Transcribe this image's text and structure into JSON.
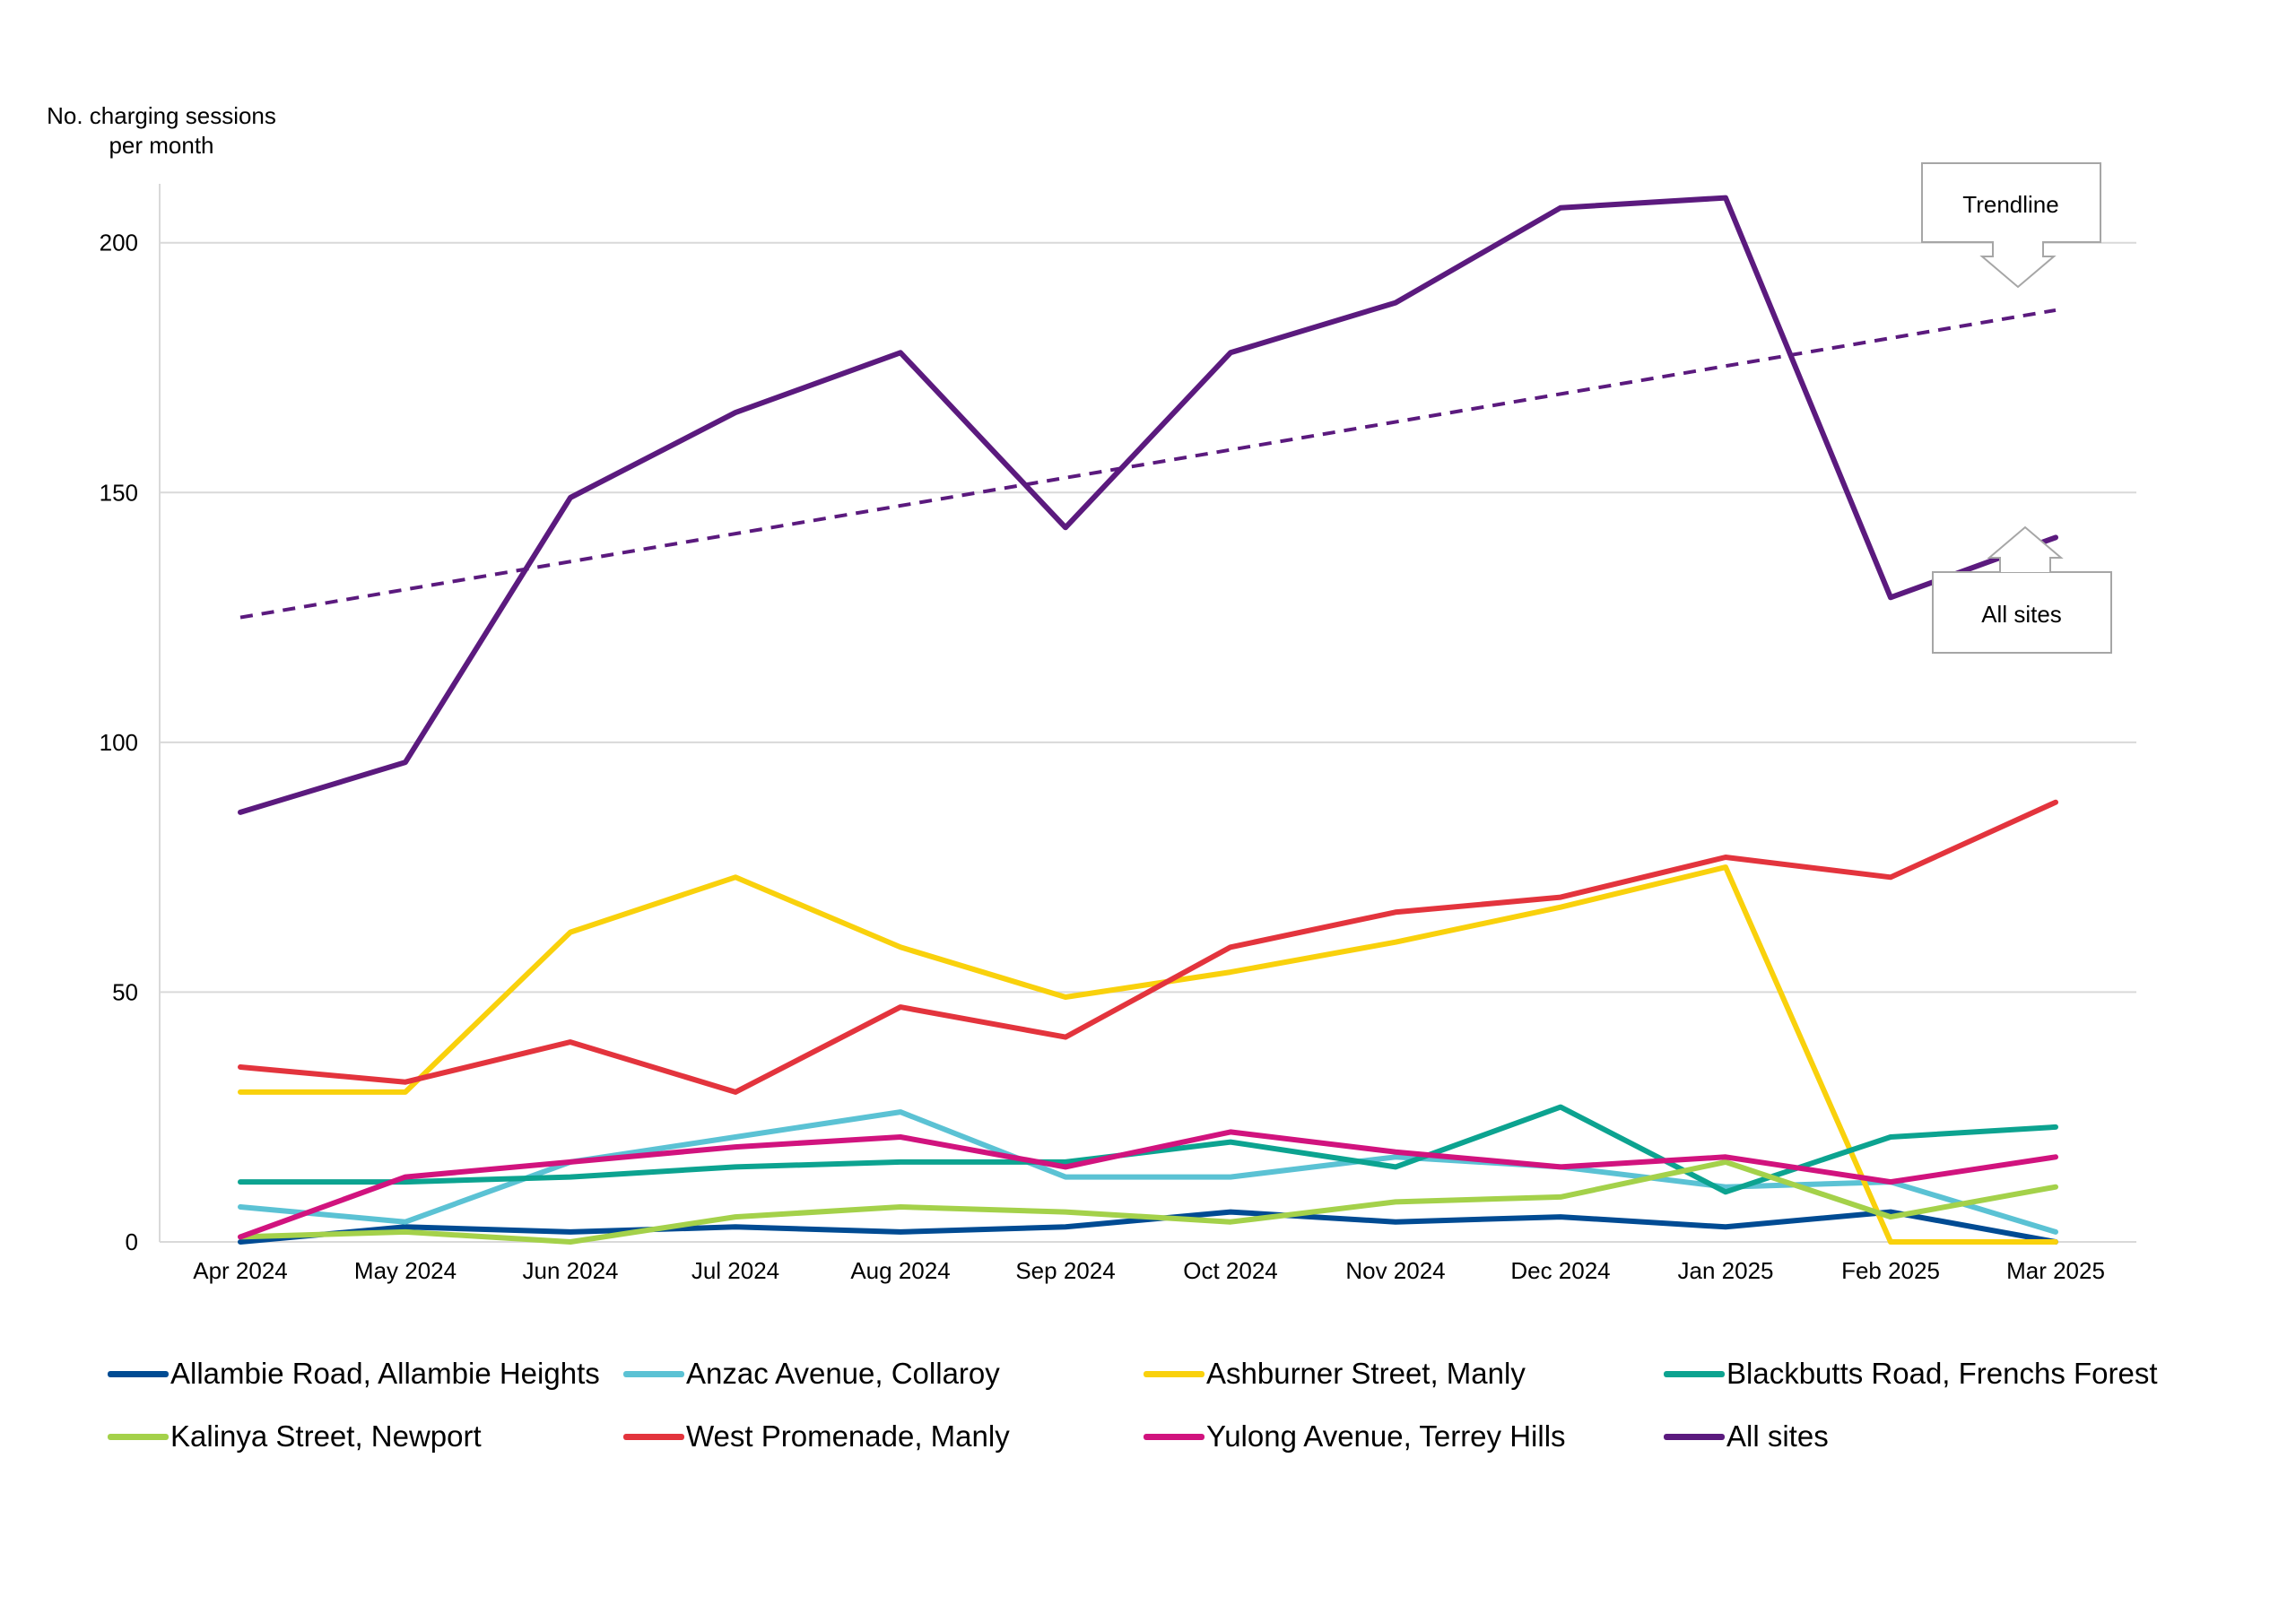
{
  "chart_data": {
    "type": "line",
    "ylabel": "No. charging sessions per month",
    "ylabel_lines": [
      "No. charging sessions",
      "per month"
    ],
    "xlabel": "",
    "ylim": [
      0,
      210
    ],
    "yticks": [
      0,
      50,
      100,
      150,
      200
    ],
    "grid": true,
    "legend_position": "bottom",
    "categories": [
      "Apr 2024",
      "May 2024",
      "Jun 2024",
      "Jul 2024",
      "Aug 2024",
      "Sep 2024",
      "Oct 2024",
      "Nov 2024",
      "Dec 2024",
      "Jan 2025",
      "Feb 2025",
      "Mar 2025"
    ],
    "series": [
      {
        "name": "Allambie Road, Allambie Heights",
        "color": "#004b93",
        "values": [
          0,
          3,
          2,
          3,
          2,
          3,
          6,
          4,
          5,
          3,
          6,
          0
        ]
      },
      {
        "name": "Anzac Avenue, Collaroy",
        "color": "#5bc2d4",
        "values": [
          7,
          4,
          16,
          21,
          26,
          13,
          13,
          17,
          15,
          11,
          12,
          2
        ]
      },
      {
        "name": "Ashburner Street, Manly",
        "color": "#f9d10c",
        "values": [
          30,
          30,
          62,
          73,
          59,
          49,
          54,
          60,
          67,
          75,
          0,
          0
        ]
      },
      {
        "name": "Blackbutts Road, Frenchs Forest",
        "color": "#0ca390",
        "values": [
          12,
          12,
          13,
          15,
          16,
          16,
          20,
          15,
          27,
          10,
          21,
          23
        ]
      },
      {
        "name": "Kalinya Street, Newport",
        "color": "#a4d14a",
        "values": [
          1,
          2,
          0,
          5,
          7,
          6,
          4,
          8,
          9,
          16,
          5,
          11
        ]
      },
      {
        "name": "West Promenade, Manly",
        "color": "#e3343d",
        "values": [
          35,
          32,
          40,
          30,
          47,
          41,
          59,
          66,
          69,
          77,
          73,
          88
        ]
      },
      {
        "name": "Yulong Avenue, Terrey Hills",
        "color": "#d1137e",
        "values": [
          1,
          13,
          16,
          19,
          21,
          15,
          22,
          18,
          15,
          17,
          12,
          17
        ]
      },
      {
        "name": "All sites",
        "color": "#5b1a7e",
        "values": [
          86,
          96,
          149,
          166,
          178,
          143,
          178,
          188,
          207,
          209,
          129,
          141
        ]
      }
    ],
    "trendline": {
      "series": "All sites",
      "values": [
        125,
        186.5
      ],
      "style": "dashed",
      "color": "#5b1a7e"
    },
    "annotations": [
      {
        "text": "Trendline",
        "target": "trendline"
      },
      {
        "text": "All sites",
        "target": "All sites"
      }
    ]
  }
}
